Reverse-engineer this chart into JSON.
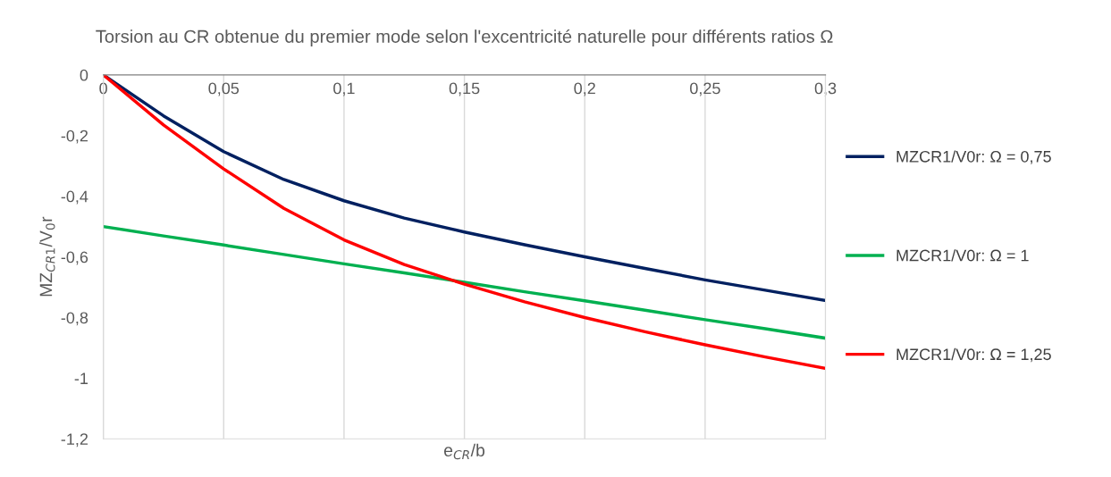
{
  "chart_data": {
    "type": "line",
    "title": "Torsion au CR obtenue du premier mode selon l'excentricité naturelle pour différents ratios Ω",
    "xlabel": "e$_{CR}$/b",
    "ylabel": "MZ$_{CR1}$/V$_{0}$r",
    "x": [
      0,
      0.025,
      0.05,
      0.075,
      0.1,
      0.125,
      0.15,
      0.175,
      0.2,
      0.225,
      0.25,
      0.275,
      0.3
    ],
    "series": [
      {
        "name": "MZCR1/V0r: Ω = 0,75",
        "color": "#002060",
        "values": [
          0,
          -0.135,
          -0.253,
          -0.345,
          -0.415,
          -0.472,
          -0.518,
          -0.56,
          -0.6,
          -0.638,
          -0.676,
          -0.71,
          -0.744
        ]
      },
      {
        "name": "MZCR1/V0r: Ω = 1",
        "color": "#00b050",
        "values": [
          -0.5,
          -0.531,
          -0.561,
          -0.592,
          -0.623,
          -0.653,
          -0.684,
          -0.715,
          -0.745,
          -0.776,
          -0.807,
          -0.837,
          -0.868
        ]
      },
      {
        "name": "MZCR1/V0r: Ω = 1,25",
        "color": "#ff0000",
        "values": [
          0,
          -0.165,
          -0.31,
          -0.44,
          -0.544,
          -0.625,
          -0.69,
          -0.748,
          -0.8,
          -0.847,
          -0.89,
          -0.93,
          -0.968
        ]
      }
    ],
    "xlim": [
      0,
      0.3
    ],
    "ylim": [
      -1.2,
      0
    ],
    "xticks": [
      0,
      {
        "value": 0.05,
        "label": "0,05"
      },
      {
        "value": 0.1,
        "label": "0,1"
      },
      {
        "value": 0.15,
        "label": "0,15"
      },
      {
        "value": 0.2,
        "label": "0,2"
      },
      {
        "value": 0.25,
        "label": "0,25"
      },
      {
        "value": 0.3,
        "label": "0,3"
      }
    ],
    "yticks": [
      {
        "value": -1.2,
        "label": "-1,2"
      },
      -1,
      {
        "value": -0.8,
        "label": "-0,8"
      },
      {
        "value": -0.6,
        "label": "-0,6"
      },
      {
        "value": -0.4,
        "label": "-0,4"
      },
      {
        "value": -0.2,
        "label": "-0,2"
      },
      0
    ],
    "grid": "x",
    "legend": "right",
    "marker": "none",
    "line_style": "solid"
  }
}
